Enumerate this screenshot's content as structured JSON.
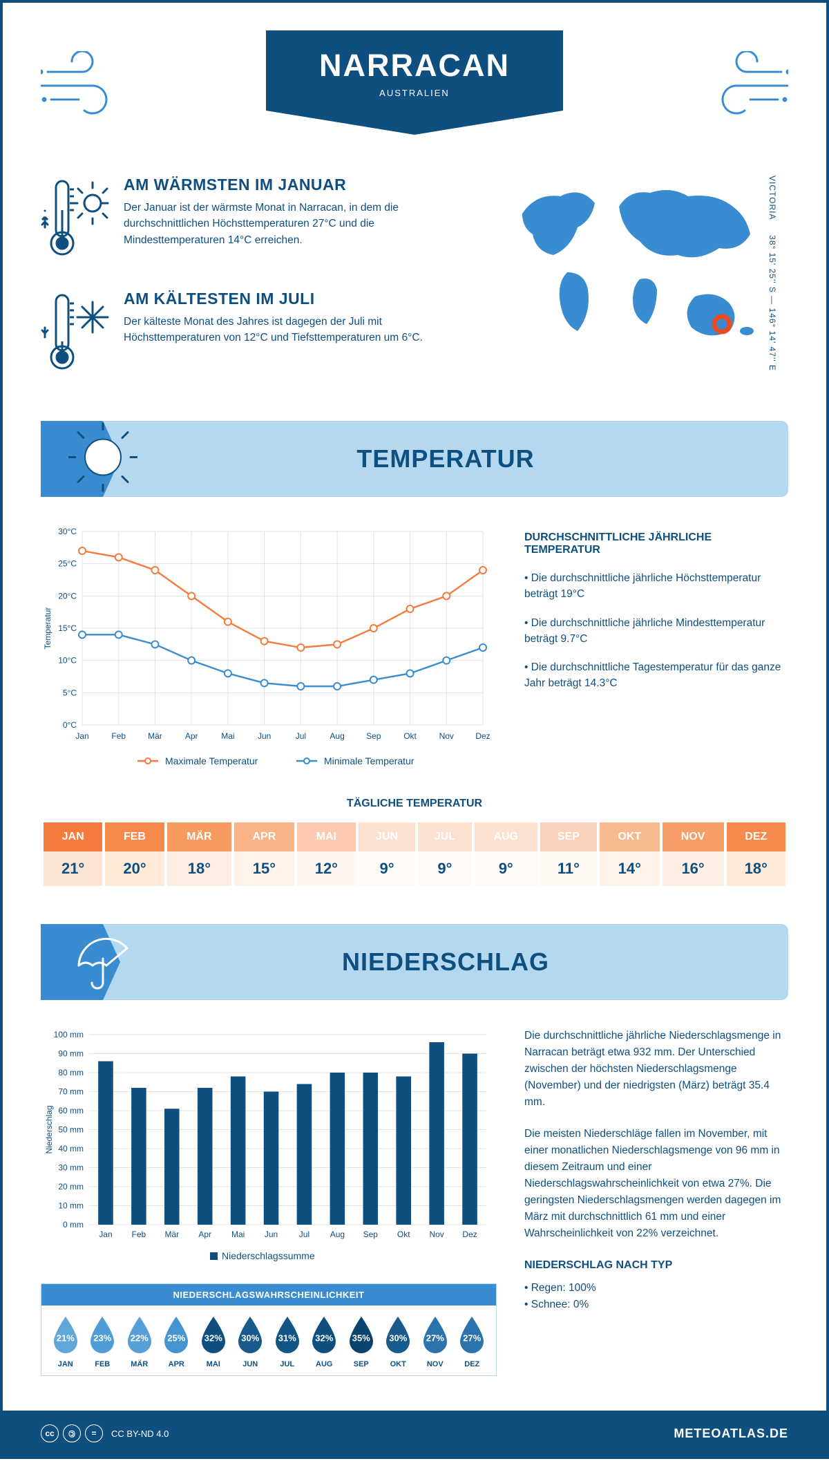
{
  "header": {
    "title": "NARRACAN",
    "subtitle": "AUSTRALIEN"
  },
  "coords": "38° 15' 25'' S — 146° 14' 47'' E",
  "region": "VICTORIA",
  "colors": {
    "brand_dark": "#0f4f80",
    "brand_mid": "#3a8cd0",
    "brand_light": "#b4d8f0",
    "orange": "#f47b3d",
    "map_marker": "#e84c27",
    "grid": "#d0d7de"
  },
  "warmest": {
    "heading": "AM WÄRMSTEN IM JANUAR",
    "text": "Der Januar ist der wärmste Monat in Narracan, in dem die durchschnittlichen Höchsttemperaturen 27°C und die Mindesttemperaturen 14°C erreichen."
  },
  "coldest": {
    "heading": "AM KÄLTESTEN IM JULI",
    "text": "Der kälteste Monat des Jahres ist dagegen der Juli mit Höchsttemperaturen von 12°C und Tiefsttemperaturen um 6°C."
  },
  "temp_section_title": "TEMPERATUR",
  "temp_chart": {
    "type": "line",
    "months": [
      "Jan",
      "Feb",
      "Mär",
      "Apr",
      "Mai",
      "Jun",
      "Jul",
      "Aug",
      "Sep",
      "Okt",
      "Nov",
      "Dez"
    ],
    "max": [
      27,
      26,
      24,
      20,
      16,
      13,
      12,
      12.5,
      15,
      18,
      20,
      24
    ],
    "min": [
      14,
      14,
      12.5,
      10,
      8,
      6.5,
      6,
      6,
      7,
      8,
      10,
      12
    ],
    "ylabel": "Temperatur",
    "ylim": [
      0,
      30
    ],
    "ytick_step": 5,
    "ytick_suffix": "°C",
    "series": [
      {
        "key": "max",
        "label": "Maximale Temperatur",
        "color": "#f47b3d"
      },
      {
        "key": "min",
        "label": "Minimale Temperatur",
        "color": "#3a8cd0"
      }
    ],
    "grid_color": "#e0e3e8",
    "line_width": 2.4,
    "marker": "circle-open",
    "marker_size": 5
  },
  "temp_summary": {
    "heading": "DURCHSCHNITTLICHE JÄHRLICHE TEMPERATUR",
    "points": [
      "• Die durchschnittliche jährliche Höchsttemperatur beträgt 19°C",
      "• Die durchschnittliche jährliche Mindesttemperatur beträgt 9.7°C",
      "• Die durchschnittliche Tagestemperatur für das ganze Jahr beträgt 14.3°C"
    ]
  },
  "daily_temp": {
    "heading": "TÄGLICHE TEMPERATUR",
    "months": [
      "JAN",
      "FEB",
      "MÄR",
      "APR",
      "MAI",
      "JUN",
      "JUL",
      "AUG",
      "SEP",
      "OKT",
      "NOV",
      "DEZ"
    ],
    "values": [
      "21°",
      "20°",
      "18°",
      "15°",
      "12°",
      "9°",
      "9°",
      "9°",
      "11°",
      "14°",
      "16°",
      "18°"
    ],
    "header_fills": [
      "#f47b3d",
      "#f58a4c",
      "#f79a60",
      "#f9b387",
      "#fccab0",
      "#fde1d0",
      "#fde1d0",
      "#fde1d0",
      "#fbd3bc",
      "#f9b98f",
      "#f79e66",
      "#f58a4c"
    ],
    "cell_fills": [
      "#fde5d4",
      "#fdead9",
      "#feeee1",
      "#fff2e8",
      "#fff6ef",
      "#fffaf5",
      "#fffaf5",
      "#fffaf5",
      "#fff8f2",
      "#fff3ea",
      "#feefe2",
      "#fdead9"
    ]
  },
  "precip_section_title": "NIEDERSCHLAG",
  "precip_chart": {
    "type": "bar",
    "months": [
      "Jan",
      "Feb",
      "Mär",
      "Apr",
      "Mai",
      "Jun",
      "Jul",
      "Aug",
      "Sep",
      "Okt",
      "Nov",
      "Dez"
    ],
    "values": [
      86,
      72,
      61,
      72,
      78,
      70,
      74,
      80,
      80,
      78,
      96,
      90
    ],
    "ylabel": "Niederschlag",
    "ylim": [
      0,
      100
    ],
    "ytick_step": 10,
    "ytick_suffix": " mm",
    "bar_color": "#0f4f80",
    "grid_color": "#e0e3e8",
    "bar_width": 0.45,
    "legend_label": "Niederschlagssumme"
  },
  "precip_text": {
    "p1": "Die durchschnittliche jährliche Niederschlagsmenge in Narracan beträgt etwa 932 mm. Der Unterschied zwischen der höchsten Niederschlagsmenge (November) und der niedrigsten (März) beträgt 35.4 mm.",
    "p2": "Die meisten Niederschläge fallen im November, mit einer monatlichen Niederschlagsmenge von 96 mm in diesem Zeitraum und einer Niederschlagswahrscheinlichkeit von etwa 27%. Die geringsten Niederschlagsmengen werden dagegen im März mit durchschnittlich 61 mm und einer Wahrscheinlichkeit von 22% verzeichnet.",
    "type_heading": "NIEDERSCHLAG NACH TYP",
    "type_rain": "• Regen: 100%",
    "type_snow": "• Schnee: 0%"
  },
  "precip_prob": {
    "title": "NIEDERSCHLAGSWAHRSCHEINLICHKEIT",
    "months": [
      "JAN",
      "FEB",
      "MÄR",
      "APR",
      "MAI",
      "JUN",
      "JUL",
      "AUG",
      "SEP",
      "OKT",
      "NOV",
      "DEZ"
    ],
    "pct": [
      "21%",
      "23%",
      "22%",
      "25%",
      "32%",
      "30%",
      "31%",
      "32%",
      "35%",
      "30%",
      "27%",
      "27%"
    ],
    "fills": [
      "#5fa7da",
      "#4f9dd4",
      "#579fd6",
      "#4693cf",
      "#0f4f80",
      "#175a8b",
      "#125585",
      "#0f4f80",
      "#0a446e",
      "#175a8b",
      "#2c73ad",
      "#2c73ad"
    ]
  },
  "footer": {
    "license": "CC BY-ND 4.0",
    "brand": "METEOATLAS.DE"
  }
}
